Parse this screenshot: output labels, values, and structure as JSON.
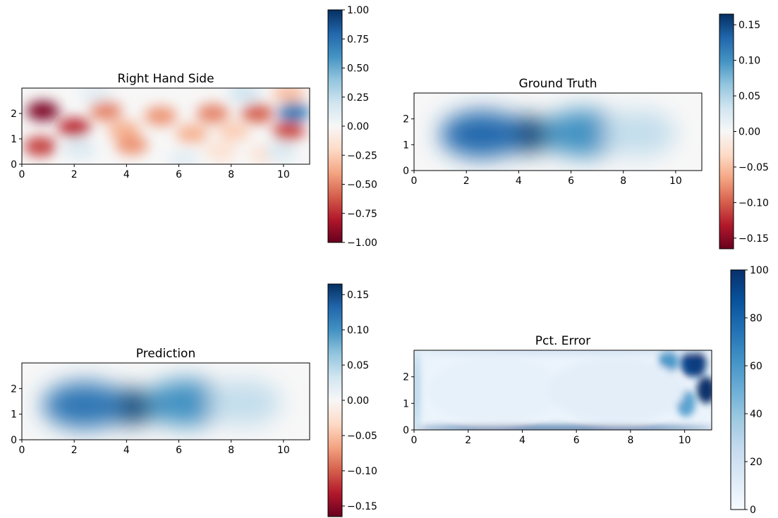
{
  "chart_data": [
    {
      "type": "heatmap",
      "title": "Right Hand Side",
      "xlim": [
        0,
        11
      ],
      "ylim": [
        0,
        3
      ],
      "xticks": [
        "0",
        "2",
        "4",
        "6",
        "8",
        "10"
      ],
      "yticks": [
        "0",
        "1",
        "2"
      ],
      "colormap": "RdBu",
      "colorbar": {
        "range": [
          -1.0,
          1.0
        ],
        "ticks": [
          "1.00",
          "0.75",
          "0.50",
          "0.25",
          "0.00",
          "−0.25",
          "−0.50",
          "−0.75",
          "−1.00"
        ]
      },
      "features": [
        {
          "x": 0.8,
          "y": 2.1,
          "value": -0.95
        },
        {
          "x": 0.7,
          "y": 0.7,
          "value": -0.7
        },
        {
          "x": 2.0,
          "y": 1.45,
          "value": -0.75
        },
        {
          "x": 2.2,
          "y": 0.6,
          "value": 0.15
        },
        {
          "x": 3.2,
          "y": 2.1,
          "value": -0.5
        },
        {
          "x": 3.9,
          "y": 1.35,
          "value": -0.35
        },
        {
          "x": 4.2,
          "y": 0.75,
          "value": -0.45
        },
        {
          "x": 5.3,
          "y": 1.9,
          "value": -0.45
        },
        {
          "x": 6.5,
          "y": 1.2,
          "value": -0.35
        },
        {
          "x": 7.3,
          "y": 2.0,
          "value": -0.5
        },
        {
          "x": 7.6,
          "y": 0.5,
          "value": -0.15
        },
        {
          "x": 8.1,
          "y": 1.3,
          "value": -0.25
        },
        {
          "x": 9.0,
          "y": 2.0,
          "value": -0.6
        },
        {
          "x": 9.3,
          "y": 0.4,
          "value": -0.15
        },
        {
          "x": 10.4,
          "y": 2.05,
          "value": 0.7
        },
        {
          "x": 10.2,
          "y": 1.3,
          "value": -0.65
        },
        {
          "x": 8.5,
          "y": 2.8,
          "value": 0.2
        },
        {
          "x": 10.2,
          "y": 2.8,
          "value": -0.3
        },
        {
          "x": 6.2,
          "y": 0.2,
          "value": 0.1
        },
        {
          "x": 9.9,
          "y": 0.5,
          "value": 0.15
        },
        {
          "x": 2.8,
          "y": 2.8,
          "value": 0.1
        }
      ]
    },
    {
      "type": "heatmap",
      "title": "Ground Truth",
      "xlim": [
        0,
        11
      ],
      "ylim": [
        0,
        3
      ],
      "xticks": [
        "0",
        "2",
        "4",
        "6",
        "8",
        "10"
      ],
      "yticks": [
        "0",
        "1",
        "2"
      ],
      "colormap": "RdBu",
      "colorbar": {
        "range": [
          -0.165,
          0.165
        ],
        "ticks": [
          "0.15",
          "0.10",
          "0.05",
          "0.00",
          "−0.05",
          "−0.10",
          "−0.15"
        ]
      },
      "features": [
        {
          "x": 4.2,
          "y": 1.4,
          "value": 0.165
        },
        {
          "x": 2.6,
          "y": 1.4,
          "value": 0.13
        },
        {
          "x": 6.5,
          "y": 1.45,
          "value": 0.1
        },
        {
          "x": 8.6,
          "y": 1.45,
          "value": 0.04
        }
      ]
    },
    {
      "type": "heatmap",
      "title": "Prediction",
      "xlim": [
        0,
        11
      ],
      "ylim": [
        0,
        3
      ],
      "xticks": [
        "0",
        "2",
        "4",
        "6",
        "8",
        "10"
      ],
      "yticks": [
        "0",
        "1",
        "2"
      ],
      "colormap": "RdBu",
      "colorbar": {
        "range": [
          -0.165,
          0.165
        ],
        "ticks": [
          "0.15",
          "0.10",
          "0.05",
          "0.00",
          "−0.05",
          "−0.10",
          "−0.15"
        ]
      },
      "features": [
        {
          "x": 4.0,
          "y": 1.3,
          "value": 0.165
        },
        {
          "x": 2.4,
          "y": 1.35,
          "value": 0.12
        },
        {
          "x": 6.3,
          "y": 1.45,
          "value": 0.1
        },
        {
          "x": 8.5,
          "y": 1.45,
          "value": 0.04
        }
      ]
    },
    {
      "type": "heatmap",
      "title": "Pct. Error",
      "xlim": [
        0,
        11
      ],
      "ylim": [
        0,
        3
      ],
      "xticks": [
        "0",
        "2",
        "4",
        "6",
        "8",
        "10"
      ],
      "yticks": [
        "0",
        "1",
        "2"
      ],
      "colormap": "Blues",
      "colorbar": {
        "range": [
          0,
          100
        ],
        "ticks": [
          "100",
          "80",
          "60",
          "40",
          "20",
          "0"
        ]
      },
      "features": [
        {
          "x": 10.2,
          "y": 2.5,
          "value": 90
        },
        {
          "x": 10.8,
          "y": 1.5,
          "value": 100
        },
        {
          "x": 10.45,
          "y": 2.5,
          "value": 95
        },
        {
          "x": 9.4,
          "y": 2.6,
          "value": 60
        },
        {
          "x": 10.05,
          "y": 1.0,
          "value": 55
        },
        {
          "x": 5.5,
          "y": 0.05,
          "value": 95
        },
        {
          "x": 0.1,
          "y": 1.5,
          "value": 40
        },
        {
          "x": 5.5,
          "y": 2.95,
          "value": 25
        },
        {
          "x": 3.0,
          "y": 1.5,
          "value": 8
        },
        {
          "x": 7.5,
          "y": 1.5,
          "value": 10
        }
      ]
    }
  ]
}
